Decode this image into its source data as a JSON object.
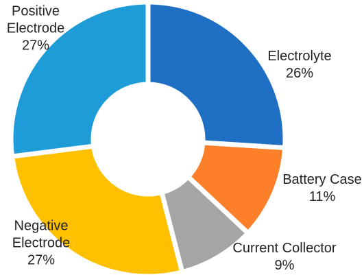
{
  "chart_data": {
    "type": "donut",
    "categories": [
      "Electrolyte",
      "Battery Case",
      "Current Collector",
      "Negative Electrode",
      "Positive Electrode"
    ],
    "values": [
      26,
      11,
      9,
      27,
      27
    ],
    "value_labels": [
      "26%",
      "11%",
      "9%",
      "27%",
      "27%"
    ],
    "colors": [
      "#1f6fc5",
      "#fd7f2a",
      "#a5a5a5",
      "#ffc000",
      "#1e9cd7"
    ]
  }
}
